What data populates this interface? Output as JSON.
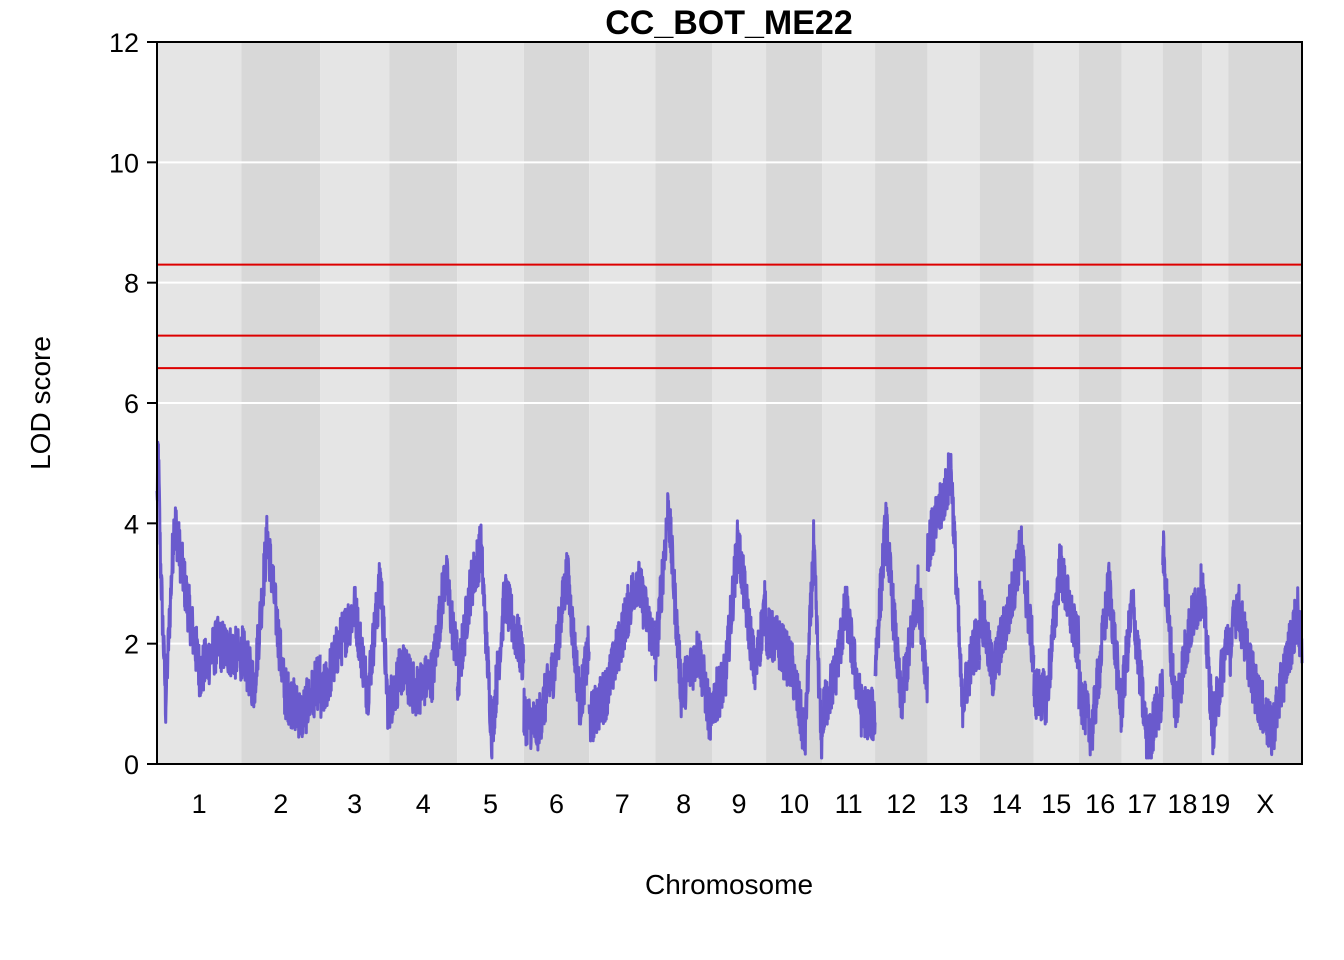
{
  "chart_data": {
    "type": "line",
    "title": "CC_BOT_ME22",
    "xlabel": "Chromosome",
    "ylabel": "LOD score",
    "ylim": [
      0,
      12
    ],
    "yticks": [
      0,
      2,
      4,
      6,
      8,
      10,
      12
    ],
    "grid": true,
    "background": "alternating grey bands per chromosome",
    "colors": {
      "lod_line": "#6a5acd",
      "threshold": "#dd0000",
      "band_light": "#e5e5e5",
      "band_dark": "#d8d8d8",
      "gridline": "#ffffff"
    },
    "thresholds": [
      8.3,
      7.12,
      6.58
    ],
    "chromosomes": [
      {
        "label": "1",
        "start": 0,
        "end": 195,
        "peaks": [
          [
            0,
            4.4
          ],
          [
            3,
            5.2
          ],
          [
            8,
            3.4
          ],
          [
            20,
            1.0
          ],
          [
            40,
            4.1
          ],
          [
            70,
            2.7
          ],
          [
            100,
            1.5
          ],
          [
            140,
            2.0
          ],
          [
            190,
            1.8
          ]
        ]
      },
      {
        "label": "2",
        "start": 195,
        "end": 377,
        "peaks": [
          [
            0,
            1.9
          ],
          [
            30,
            1.3
          ],
          [
            60,
            3.8
          ],
          [
            100,
            1.2
          ],
          [
            140,
            0.8
          ],
          [
            180,
            1.4
          ]
        ]
      },
      {
        "label": "3",
        "start": 377,
        "end": 537,
        "peaks": [
          [
            0,
            1.0
          ],
          [
            40,
            1.9
          ],
          [
            80,
            2.6
          ],
          [
            110,
            1.2
          ],
          [
            140,
            3.1
          ],
          [
            158,
            0.8
          ]
        ]
      },
      {
        "label": "4",
        "start": 537,
        "end": 694,
        "peaks": [
          [
            0,
            1.0
          ],
          [
            30,
            1.6
          ],
          [
            60,
            1.2
          ],
          [
            100,
            1.5
          ],
          [
            130,
            3.2
          ],
          [
            155,
            1.8
          ]
        ]
      },
      {
        "label": "5",
        "start": 694,
        "end": 848,
        "peaks": [
          [
            0,
            1.3
          ],
          [
            30,
            2.9
          ],
          [
            55,
            3.6
          ],
          [
            80,
            0.5
          ],
          [
            110,
            2.8
          ],
          [
            150,
            1.8
          ]
        ]
      },
      {
        "label": "6",
        "start": 848,
        "end": 999,
        "peaks": [
          [
            0,
            0.8
          ],
          [
            30,
            0.6
          ],
          [
            70,
            1.6
          ],
          [
            100,
            3.2
          ],
          [
            130,
            1.0
          ],
          [
            150,
            1.9
          ]
        ]
      },
      {
        "label": "7",
        "start": 999,
        "end": 1152,
        "peaks": [
          [
            0,
            0.7
          ],
          [
            40,
            1.2
          ],
          [
            70,
            2.0
          ],
          [
            110,
            3.1
          ],
          [
            150,
            2.0
          ]
        ]
      },
      {
        "label": "8",
        "start": 1152,
        "end": 1283,
        "peaks": [
          [
            0,
            1.7
          ],
          [
            30,
            4.3
          ],
          [
            60,
            1.2
          ],
          [
            100,
            1.9
          ],
          [
            130,
            0.6
          ]
        ]
      },
      {
        "label": "9",
        "start": 1283,
        "end": 1408,
        "peaks": [
          [
            0,
            1.0
          ],
          [
            30,
            1.4
          ],
          [
            60,
            3.7
          ],
          [
            100,
            1.5
          ],
          [
            122,
            2.6
          ]
        ]
      },
      {
        "label": "10",
        "start": 1408,
        "end": 1538,
        "peaks": [
          [
            0,
            2.2
          ],
          [
            30,
            2.0
          ],
          [
            60,
            1.6
          ],
          [
            90,
            0.4
          ],
          [
            110,
            3.6
          ],
          [
            128,
            0.3
          ]
        ]
      },
      {
        "label": "11",
        "start": 1538,
        "end": 1660,
        "peaks": [
          [
            0,
            0.8
          ],
          [
            30,
            1.5
          ],
          [
            55,
            2.6
          ],
          [
            90,
            0.9
          ],
          [
            120,
            0.8
          ]
        ]
      },
      {
        "label": "12",
        "start": 1660,
        "end": 1781,
        "peaks": [
          [
            0,
            1.6
          ],
          [
            25,
            4.0
          ],
          [
            60,
            1.0
          ],
          [
            100,
            2.9
          ],
          [
            120,
            1.4
          ]
        ]
      },
      {
        "label": "13",
        "start": 1781,
        "end": 1902,
        "peaks": [
          [
            0,
            3.6
          ],
          [
            25,
            4.1
          ],
          [
            55,
            4.9
          ],
          [
            80,
            1.0
          ],
          [
            110,
            2.0
          ]
        ]
      },
      {
        "label": "14",
        "start": 1902,
        "end": 2027,
        "peaks": [
          [
            0,
            2.7
          ],
          [
            30,
            1.5
          ],
          [
            70,
            2.6
          ],
          [
            95,
            3.6
          ],
          [
            124,
            1.8
          ]
        ]
      },
      {
        "label": "15",
        "start": 2027,
        "end": 2131,
        "peaks": [
          [
            0,
            1.2
          ],
          [
            30,
            1.1
          ],
          [
            60,
            3.3
          ],
          [
            100,
            2.0
          ]
        ]
      },
      {
        "label": "16",
        "start": 2131,
        "end": 2230,
        "peaks": [
          [
            0,
            1.3
          ],
          [
            30,
            0.5
          ],
          [
            70,
            3.0
          ],
          [
            98,
            0.9
          ]
        ]
      },
      {
        "label": "17",
        "start": 2230,
        "end": 2325,
        "peaks": [
          [
            0,
            1.0
          ],
          [
            25,
            2.7
          ],
          [
            60,
            0.3
          ],
          [
            94,
            1.2
          ]
        ]
      },
      {
        "label": "18",
        "start": 2325,
        "end": 2416,
        "peaks": [
          [
            0,
            3.6
          ],
          [
            30,
            0.9
          ],
          [
            60,
            2.2
          ],
          [
            90,
            2.9
          ]
        ]
      },
      {
        "label": "19",
        "start": 2416,
        "end": 2477,
        "peaks": [
          [
            0,
            3.0
          ],
          [
            25,
            0.6
          ],
          [
            60,
            2.2
          ]
        ]
      },
      {
        "label": "X",
        "start": 2477,
        "end": 2647,
        "peaks": [
          [
            0,
            1.7
          ],
          [
            20,
            2.7
          ],
          [
            60,
            1.3
          ],
          [
            100,
            0.5
          ],
          [
            140,
            1.9
          ],
          [
            160,
            2.5
          ],
          [
            169,
            1.9
          ]
        ]
      }
    ]
  }
}
